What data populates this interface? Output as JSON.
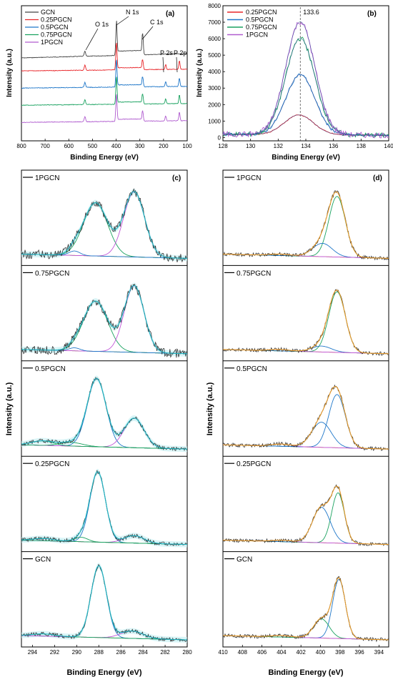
{
  "chart_data": [
    {
      "id": "a",
      "type": "line",
      "panel_label": "(a)",
      "xlabel": "Binding Energy (eV)",
      "ylabel": "Intensity (a.u.)",
      "xlim": [
        800,
        100
      ],
      "x_ticks": [
        "800",
        "700",
        "600",
        "500",
        "400",
        "300",
        "200",
        "100"
      ],
      "legend_position": "top-left",
      "series": [
        {
          "name": "GCN",
          "color": "#444444"
        },
        {
          "name": "0.25PGCN",
          "color": "#e8262a"
        },
        {
          "name": "0.5PGCN",
          "color": "#1f77c9"
        },
        {
          "name": "0.75PGCN",
          "color": "#1aa260"
        },
        {
          "name": "1PGCN",
          "color": "#b05ccf"
        }
      ],
      "peaks": [
        {
          "label": "O 1s",
          "x": 532
        },
        {
          "label": "N 1s",
          "x": 399
        },
        {
          "label": "C 1s",
          "x": 288
        },
        {
          "label": "P 2s",
          "x": 191
        },
        {
          "label": "P 2p",
          "x": 133
        }
      ]
    },
    {
      "id": "b",
      "type": "line",
      "panel_label": "(b)",
      "xlabel": "Binding Energy (eV)",
      "ylabel": "Intensity (a.u.)",
      "xlim": [
        128,
        140
      ],
      "ylim": [
        -200,
        8000
      ],
      "x_ticks": [
        "128",
        "130",
        "132",
        "134",
        "136",
        "138",
        "140"
      ],
      "y_ticks": [
        "0",
        "1000",
        "2000",
        "3000",
        "4000",
        "5000",
        "6000",
        "7000",
        "8000"
      ],
      "legend_position": "top-left",
      "annotation": "133.6",
      "reference_x": 133.6,
      "series": [
        {
          "name": "0.25PGCN",
          "color": "#e8262a",
          "peak_x": 133.5,
          "peak_y": 1200
        },
        {
          "name": "0.5PGCN",
          "color": "#1f77c9",
          "peak_x": 133.6,
          "peak_y": 3650
        },
        {
          "name": "0.75PGCN",
          "color": "#1aa260",
          "peak_x": 133.6,
          "peak_y": 5850
        },
        {
          "name": "1PGCN",
          "color": "#b05ccf",
          "peak_x": 133.6,
          "peak_y": 6850
        }
      ]
    },
    {
      "id": "c",
      "type": "line",
      "panel_label": "(c)",
      "xlabel": "Binding Energy (eV)",
      "ylabel": "Intensity (a.u.)",
      "xlim": [
        295,
        280
      ],
      "x_ticks": [
        "294",
        "292",
        "290",
        "288",
        "286",
        "284",
        "282",
        "280"
      ],
      "subpanels": [
        {
          "label": "1PGCN",
          "components": [
            {
              "center": 288.3,
              "height": 0.72,
              "width": 1.1,
              "color": "#1aa260"
            },
            {
              "center": 284.8,
              "height": 0.88,
              "width": 0.95,
              "color": "#c257d8"
            },
            {
              "center": 290.2,
              "height": 0.06,
              "width": 0.5,
              "color": "#1f77c9"
            }
          ]
        },
        {
          "label": "0.75PGCN",
          "components": [
            {
              "center": 288.3,
              "height": 0.68,
              "width": 1.1,
              "color": "#1aa260"
            },
            {
              "center": 284.8,
              "height": 0.9,
              "width": 0.9,
              "color": "#c257d8"
            },
            {
              "center": 290.2,
              "height": 0.04,
              "width": 0.5,
              "color": "#1f77c9"
            }
          ]
        },
        {
          "label": "0.5PGCN",
          "components": [
            {
              "center": 288.2,
              "height": 0.92,
              "width": 0.85,
              "color": "#1f77c9"
            },
            {
              "center": 284.8,
              "height": 0.4,
              "width": 0.9,
              "color": "#c257d8"
            },
            {
              "center": 290.5,
              "height": 0.05,
              "width": 1.0,
              "color": "#1aa260"
            },
            {
              "center": 293.1,
              "height": 0.06,
              "width": 1.0,
              "color": "#1aa260"
            }
          ]
        },
        {
          "label": "0.25PGCN",
          "components": [
            {
              "center": 288.1,
              "height": 0.95,
              "width": 0.7,
              "color": "#1f77c9"
            },
            {
              "center": 284.8,
              "height": 0.1,
              "width": 0.9,
              "color": "#c257d8"
            },
            {
              "center": 289.6,
              "height": 0.06,
              "width": 0.6,
              "color": "#1aa260"
            },
            {
              "center": 293.0,
              "height": 0.03,
              "width": 1.0,
              "color": "#1aa260"
            }
          ]
        },
        {
          "label": "GCN",
          "components": [
            {
              "center": 288.0,
              "height": 0.97,
              "width": 0.7,
              "color": "#1f77c9"
            },
            {
              "center": 285.0,
              "height": 0.1,
              "width": 1.0,
              "color": "#c257d8"
            },
            {
              "center": 293.0,
              "height": 0.03,
              "width": 1.0,
              "color": "#1aa260"
            }
          ]
        }
      ]
    },
    {
      "id": "d",
      "type": "line",
      "panel_label": "(d)",
      "xlabel": "Binding Energy (eV)",
      "ylabel": "Intensity (a.u.)",
      "xlim": [
        410,
        393
      ],
      "x_ticks": [
        "410",
        "408",
        "406",
        "404",
        "402",
        "400",
        "398",
        "396",
        "394"
      ],
      "subpanels": [
        {
          "label": "1PGCN",
          "components": [
            {
              "center": 398.3,
              "height": 0.82,
              "width": 0.85,
              "color": "#1aa260"
            },
            {
              "center": 399.8,
              "height": 0.18,
              "width": 1.0,
              "color": "#1f77c9"
            },
            {
              "center": 404.2,
              "height": 0.02,
              "width": 1.0,
              "color": "#c257d8"
            }
          ]
        },
        {
          "label": "0.75PGCN",
          "components": [
            {
              "center": 398.3,
              "height": 0.82,
              "width": 0.85,
              "color": "#1aa260"
            },
            {
              "center": 399.9,
              "height": 0.08,
              "width": 1.0,
              "color": "#1f77c9"
            },
            {
              "center": 404.2,
              "height": 0.02,
              "width": 1.0,
              "color": "#c257d8"
            }
          ]
        },
        {
          "label": "0.5PGCN",
          "components": [
            {
              "center": 398.3,
              "height": 0.72,
              "width": 0.85,
              "color": "#1f77c9"
            },
            {
              "center": 399.9,
              "height": 0.34,
              "width": 1.0,
              "color": "#1f77c9"
            },
            {
              "center": 404.0,
              "height": 0.03,
              "width": 1.0,
              "color": "#c257d8"
            }
          ]
        },
        {
          "label": "0.25PGCN",
          "components": [
            {
              "center": 398.2,
              "height": 0.68,
              "width": 0.65,
              "color": "#1aa260"
            },
            {
              "center": 399.9,
              "height": 0.48,
              "width": 0.9,
              "color": "#1f77c9"
            },
            {
              "center": 404.0,
              "height": 0.02,
              "width": 1.0,
              "color": "#c257d8"
            }
          ]
        },
        {
          "label": "GCN",
          "components": [
            {
              "center": 398.1,
              "height": 0.8,
              "width": 0.65,
              "color": "#1f77c9"
            },
            {
              "center": 399.9,
              "height": 0.26,
              "width": 0.8,
              "color": "#1aa260"
            },
            {
              "center": 404.0,
              "height": 0.02,
              "width": 1.0,
              "color": "#c257d8"
            }
          ]
        }
      ]
    }
  ]
}
